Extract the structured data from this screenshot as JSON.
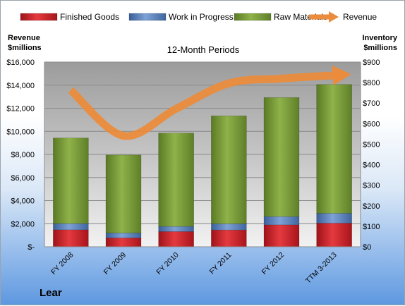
{
  "company": "Lear",
  "chart_data": {
    "type": "bar",
    "stacked": true,
    "title": "12-Month Periods",
    "left_axis_label": [
      "Revenue",
      "$millions"
    ],
    "right_axis_label": [
      "Inventory",
      "$millions"
    ],
    "categories": [
      "FY 2008",
      "FY 2009",
      "FY 2010",
      "FY 2011",
      "FY 2012",
      "TTM 3-2013"
    ],
    "series": [
      {
        "name": "Finished Goods",
        "axis": "right",
        "color": "#d8222a",
        "values": [
          83,
          43,
          74,
          82,
          107,
          115
        ]
      },
      {
        "name": "Work in Progress",
        "axis": "right",
        "color": "#5b85c2",
        "values": [
          30,
          24,
          25,
          30,
          40,
          48
        ]
      },
      {
        "name": "Raw Materials",
        "axis": "right",
        "color": "#7ea03a",
        "values": [
          417,
          380,
          455,
          526,
          580,
          628
        ]
      },
      {
        "name": "Revenue",
        "axis": "left",
        "type": "line",
        "color": "#ea8c3c",
        "values": [
          13570,
          9615,
          11955,
          14156,
          14567,
          14850
        ]
      }
    ],
    "left_axis": {
      "min": 0,
      "max": 16000,
      "ticks": [
        "$-",
        "$2,000",
        "$4,000",
        "$6,000",
        "$8,000",
        "$10,000",
        "$12,000",
        "$14,000",
        "$16,000"
      ]
    },
    "right_axis": {
      "min": 0,
      "max": 900,
      "ticks": [
        "$0",
        "$100",
        "$200",
        "$300",
        "$400",
        "$500",
        "$600",
        "$700",
        "$800",
        "$900"
      ]
    },
    "grid": true,
    "legend_position": "top"
  }
}
